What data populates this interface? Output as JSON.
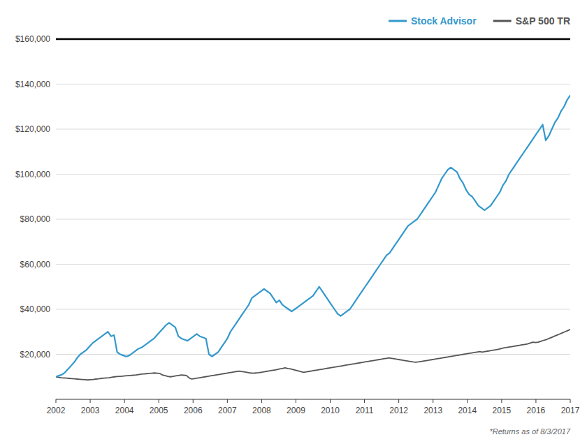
{
  "chart_data": {
    "type": "line",
    "series": [
      {
        "name": "Stock Advisor",
        "color": "#3399cc",
        "x": [
          2002,
          2002.0893,
          2002.1786,
          2002.2679,
          2002.3571,
          2002.4464,
          2002.5357,
          2002.625,
          2002.7143,
          2002.8036,
          2002.8929,
          2002.9821,
          2003.0714,
          2003.1607,
          2003.25,
          2003.3393,
          2003.4286,
          2003.5179,
          2003.6071,
          2003.6964,
          2003.7857,
          2003.875,
          2003.9643,
          2004.0536,
          2004.1429,
          2004.2321,
          2004.3214,
          2004.4107,
          2004.5,
          2004.5893,
          2004.6786,
          2004.7679,
          2004.8571,
          2004.9464,
          2005.0357,
          2005.125,
          2005.2143,
          2005.3036,
          2005.3929,
          2005.4821,
          2005.5714,
          2005.6607,
          2005.75,
          2005.8393,
          2005.9286,
          2006.0179,
          2006.1071,
          2006.1964,
          2006.2857,
          2006.375,
          2006.4643,
          2006.5536,
          2006.6429,
          2006.7321,
          2006.8214,
          2006.9107,
          2007,
          2007.0893,
          2007.1786,
          2007.2679,
          2007.3571,
          2007.4464,
          2007.5357,
          2007.625,
          2007.7143,
          2007.8036,
          2007.8929,
          2007.9821,
          2008.0714,
          2008.1607,
          2008.25,
          2008.3393,
          2008.4286,
          2008.5179,
          2008.6071,
          2008.6964,
          2008.7857,
          2008.875,
          2008.9643,
          2009.0536,
          2009.1429,
          2009.2321,
          2009.3214,
          2009.4107,
          2009.5,
          2009.5893,
          2009.6786,
          2009.7679,
          2009.8571,
          2009.9464,
          2010.0357,
          2010.125,
          2010.2143,
          2010.3036,
          2010.3929,
          2010.4821,
          2010.5714,
          2010.6607,
          2010.75,
          2010.8393,
          2010.9286,
          2011.0179,
          2011.1071,
          2011.1964,
          2011.2857,
          2011.375,
          2011.4643,
          2011.5536,
          2011.6429,
          2011.7321,
          2011.8214,
          2011.9107,
          2012,
          2012.0893,
          2012.1786,
          2012.2679,
          2012.3571,
          2012.4464,
          2012.5357,
          2012.625,
          2012.7143,
          2012.8036,
          2012.8929,
          2012.9821,
          2013.0714,
          2013.1607,
          2013.25,
          2013.3393,
          2013.4286,
          2013.5179,
          2013.6071,
          2013.6964,
          2013.7857,
          2013.875,
          2013.9643,
          2014.0536,
          2014.1429,
          2014.2321,
          2014.3214,
          2014.4107,
          2014.5,
          2014.5893,
          2014.6786,
          2014.7679,
          2014.8571,
          2014.9464,
          2015.0357,
          2015.125,
          2015.2143,
          2015.3036,
          2015.3929,
          2015.4821,
          2015.5714,
          2015.6607,
          2015.75,
          2015.8393,
          2015.9286,
          2016.0179,
          2016.1071,
          2016.1964,
          2016.2857,
          2016.375,
          2016.4643,
          2016.5536,
          2016.6429,
          2016.7321,
          2016.8214,
          2016.9107,
          2017
        ],
        "values": [
          10000,
          10500,
          11000,
          12000,
          13500,
          15000,
          16500,
          18500,
          20000,
          21000,
          22000,
          23500,
          25000,
          26000,
          27000,
          28000,
          29000,
          30000,
          28000,
          28500,
          21000,
          20000,
          19500,
          19000,
          19500,
          20500,
          21500,
          22500,
          23000,
          24000,
          25000,
          26000,
          27000,
          28500,
          30000,
          31500,
          33000,
          34000,
          33000,
          32000,
          28000,
          27000,
          26500,
          26000,
          27000,
          28000,
          29000,
          28000,
          27500,
          27000,
          20000,
          19000,
          20000,
          21000,
          23000,
          25000,
          27000,
          30000,
          32000,
          34000,
          36000,
          38000,
          40000,
          42000,
          45000,
          46000,
          47000,
          48000,
          49000,
          48000,
          47000,
          45000,
          43000,
          44000,
          42000,
          41000,
          40000,
          39000,
          40000,
          41000,
          42000,
          43000,
          44000,
          45000,
          46000,
          48000,
          50000,
          48000,
          46000,
          44000,
          42000,
          40000,
          38000,
          37000,
          38000,
          39000,
          40000,
          42000,
          44000,
          46000,
          48000,
          50000,
          52000,
          54000,
          56000,
          58000,
          60000,
          62000,
          64000,
          65000,
          67000,
          69000,
          71000,
          73000,
          75000,
          77000,
          78000,
          79000,
          80000,
          82000,
          84000,
          86000,
          88000,
          90000,
          92000,
          95000,
          98000,
          100000,
          102000,
          103000,
          102000,
          101000,
          98000,
          96000,
          93000,
          91000,
          90000,
          88000,
          86000,
          85000,
          84000,
          85000,
          86000,
          88000,
          90000,
          92000,
          95000,
          97000,
          100000,
          102000,
          104000,
          106000,
          108000,
          110000,
          112000,
          114000,
          116000,
          118000,
          120000,
          122000,
          115000,
          117000,
          120000,
          123000,
          125000,
          128000,
          130000,
          133000,
          135000
        ]
      },
      {
        "name": "S&P 500 TR",
        "color": "#555555",
        "x": [
          2002,
          2002.0777,
          2002.1554,
          2002.2332,
          2002.3109,
          2002.3886,
          2002.4663,
          2002.544,
          2002.6218,
          2002.6995,
          2002.7772,
          2002.8549,
          2002.9326,
          2003.0104,
          2003.0881,
          2003.1658,
          2003.2435,
          2003.3212,
          2003.399,
          2003.4767,
          2003.5544,
          2003.6321,
          2003.7098,
          2003.7876,
          2003.8653,
          2003.943,
          2004.0207,
          2004.0984,
          2004.1762,
          2004.2539,
          2004.3316,
          2004.4093,
          2004.487,
          2004.5648,
          2004.6425,
          2004.7202,
          2004.7979,
          2004.8756,
          2004.9534,
          2005.0311,
          2005.1088,
          2005.1865,
          2005.2642,
          2005.342,
          2005.4197,
          2005.4974,
          2005.5751,
          2005.6528,
          2005.7306,
          2005.8083,
          2005.886,
          2005.9637,
          2006.0415,
          2006.1192,
          2006.1969,
          2006.2746,
          2006.3523,
          2006.4301,
          2006.5078,
          2006.5855,
          2006.6632,
          2006.7409,
          2006.8187,
          2006.8964,
          2006.9741,
          2007.0518,
          2007.1295,
          2007.2073,
          2007.285,
          2007.3627,
          2007.4404,
          2007.5181,
          2007.5959,
          2007.6736,
          2007.7513,
          2007.829,
          2007.9067,
          2007.9845,
          2008.0622,
          2008.1399,
          2008.2176,
          2008.2953,
          2008.3731,
          2008.4508,
          2008.5285,
          2008.6062,
          2008.6839,
          2008.7617,
          2008.8394,
          2008.9171,
          2008.9948,
          2009.0725,
          2009.1503,
          2009.228,
          2009.3057,
          2009.3834,
          2009.4611,
          2009.5389,
          2009.6166,
          2009.6943,
          2009.772,
          2009.8497,
          2009.9275,
          2010.0052,
          2010.0829,
          2010.1606,
          2010.2383,
          2010.3161,
          2010.3938,
          2010.4715,
          2010.5492,
          2010.6269,
          2010.7047,
          2010.7824,
          2010.8601,
          2010.9378,
          2011.0155,
          2011.0933,
          2011.171,
          2011.2487,
          2011.3264,
          2011.4041,
          2011.4819,
          2011.5596,
          2011.6373,
          2011.715,
          2011.7927,
          2011.8705,
          2011.9482,
          2012.0259,
          2012.1036,
          2012.1813,
          2012.2591,
          2012.3368,
          2012.4145,
          2012.4922,
          2012.5699,
          2012.6477,
          2012.7254,
          2012.8031,
          2012.8808,
          2012.9585,
          2013.0363,
          2013.114,
          2013.1917,
          2013.2694,
          2013.3472,
          2013.4249,
          2013.5026,
          2013.5803,
          2013.658,
          2013.7358,
          2013.8135,
          2013.8912,
          2013.9689,
          2014.0466,
          2014.1244,
          2014.2021,
          2014.2798,
          2014.3575,
          2014.4352,
          2014.513,
          2014.5907,
          2014.6684,
          2014.7461,
          2014.8238,
          2014.9016,
          2014.9793,
          2015.057,
          2015.1347,
          2015.2124,
          2015.2902,
          2015.3679,
          2015.4456,
          2015.5233,
          2015.601,
          2015.6788,
          2015.7565,
          2015.8342,
          2015.9119,
          2015.9896,
          2016.0674,
          2016.1451,
          2016.2228,
          2016.3005,
          2016.3782,
          2016.456,
          2016.5337,
          2016.6114,
          2016.6891,
          2016.7668,
          2016.8446,
          2016.9223,
          2017
        ],
        "values": [
          10000,
          9800,
          9600,
          9500,
          9400,
          9300,
          9200,
          9100,
          9000,
          8900,
          8800,
          8700,
          8600,
          8700,
          8800,
          9000,
          9100,
          9300,
          9400,
          9500,
          9600,
          9800,
          10000,
          10100,
          10200,
          10300,
          10400,
          10500,
          10600,
          10700,
          10800,
          11000,
          11200,
          11300,
          11400,
          11500,
          11600,
          11700,
          11600,
          11500,
          10800,
          10500,
          10200,
          10000,
          10200,
          10400,
          10600,
          10800,
          10700,
          10600,
          9500,
          9000,
          9200,
          9400,
          9600,
          9800,
          10000,
          10200,
          10400,
          10600,
          10800,
          11000,
          11200,
          11400,
          11600,
          11800,
          12000,
          12200,
          12400,
          12500,
          12300,
          12100,
          11900,
          11700,
          11600,
          11700,
          11800,
          12000,
          12200,
          12400,
          12600,
          12800,
          13000,
          13200,
          13500,
          13700,
          14000,
          13700,
          13500,
          13200,
          12900,
          12600,
          12300,
          12000,
          12200,
          12400,
          12600,
          12800,
          13000,
          13200,
          13400,
          13600,
          13800,
          14000,
          14200,
          14400,
          14600,
          14800,
          15000,
          15200,
          15400,
          15600,
          15800,
          16000,
          16200,
          16400,
          16600,
          16800,
          17000,
          17200,
          17400,
          17600,
          17800,
          18000,
          18200,
          18400,
          18200,
          18000,
          17800,
          17600,
          17400,
          17200,
          17000,
          16800,
          16600,
          16500,
          16600,
          16800,
          17000,
          17200,
          17400,
          17600,
          17800,
          18000,
          18200,
          18400,
          18600,
          18800,
          19000,
          19200,
          19400,
          19600,
          19800,
          20000,
          20200,
          20400,
          20600,
          20800,
          21000,
          21200,
          21000,
          21200,
          21400,
          21600,
          21800,
          22000,
          22200,
          22500,
          22800,
          23000,
          23200,
          23400,
          23600,
          23800,
          24000,
          24200,
          24400,
          24600,
          25000,
          25400,
          25200,
          25400,
          25800,
          26200,
          26500,
          27000,
          27500,
          28000,
          28500,
          29000,
          29500,
          30000,
          30500,
          31000
        ]
      }
    ],
    "xlim": [
      2002,
      2017
    ],
    "xticks": [
      2002,
      2003,
      2004,
      2005,
      2006,
      2007,
      2008,
      2009,
      2010,
      2011,
      2012,
      2013,
      2014,
      2015,
      2016,
      2017
    ],
    "ylim": [
      0,
      160000
    ],
    "yticks": [
      {
        "value": 20000,
        "label": "$20,000"
      },
      {
        "value": 40000,
        "label": "$40,000"
      },
      {
        "value": 60000,
        "label": "$60,000"
      },
      {
        "value": 80000,
        "label": "$80,000"
      },
      {
        "value": 100000,
        "label": "$100,000"
      },
      {
        "value": 120000,
        "label": "$120,000"
      },
      {
        "value": 140000,
        "label": "$140,000"
      },
      {
        "value": 160000,
        "label": "$160,000"
      }
    ],
    "grid": true,
    "legend": "upper right",
    "annotations": [
      "*Returns as of 8/3/2017"
    ]
  }
}
